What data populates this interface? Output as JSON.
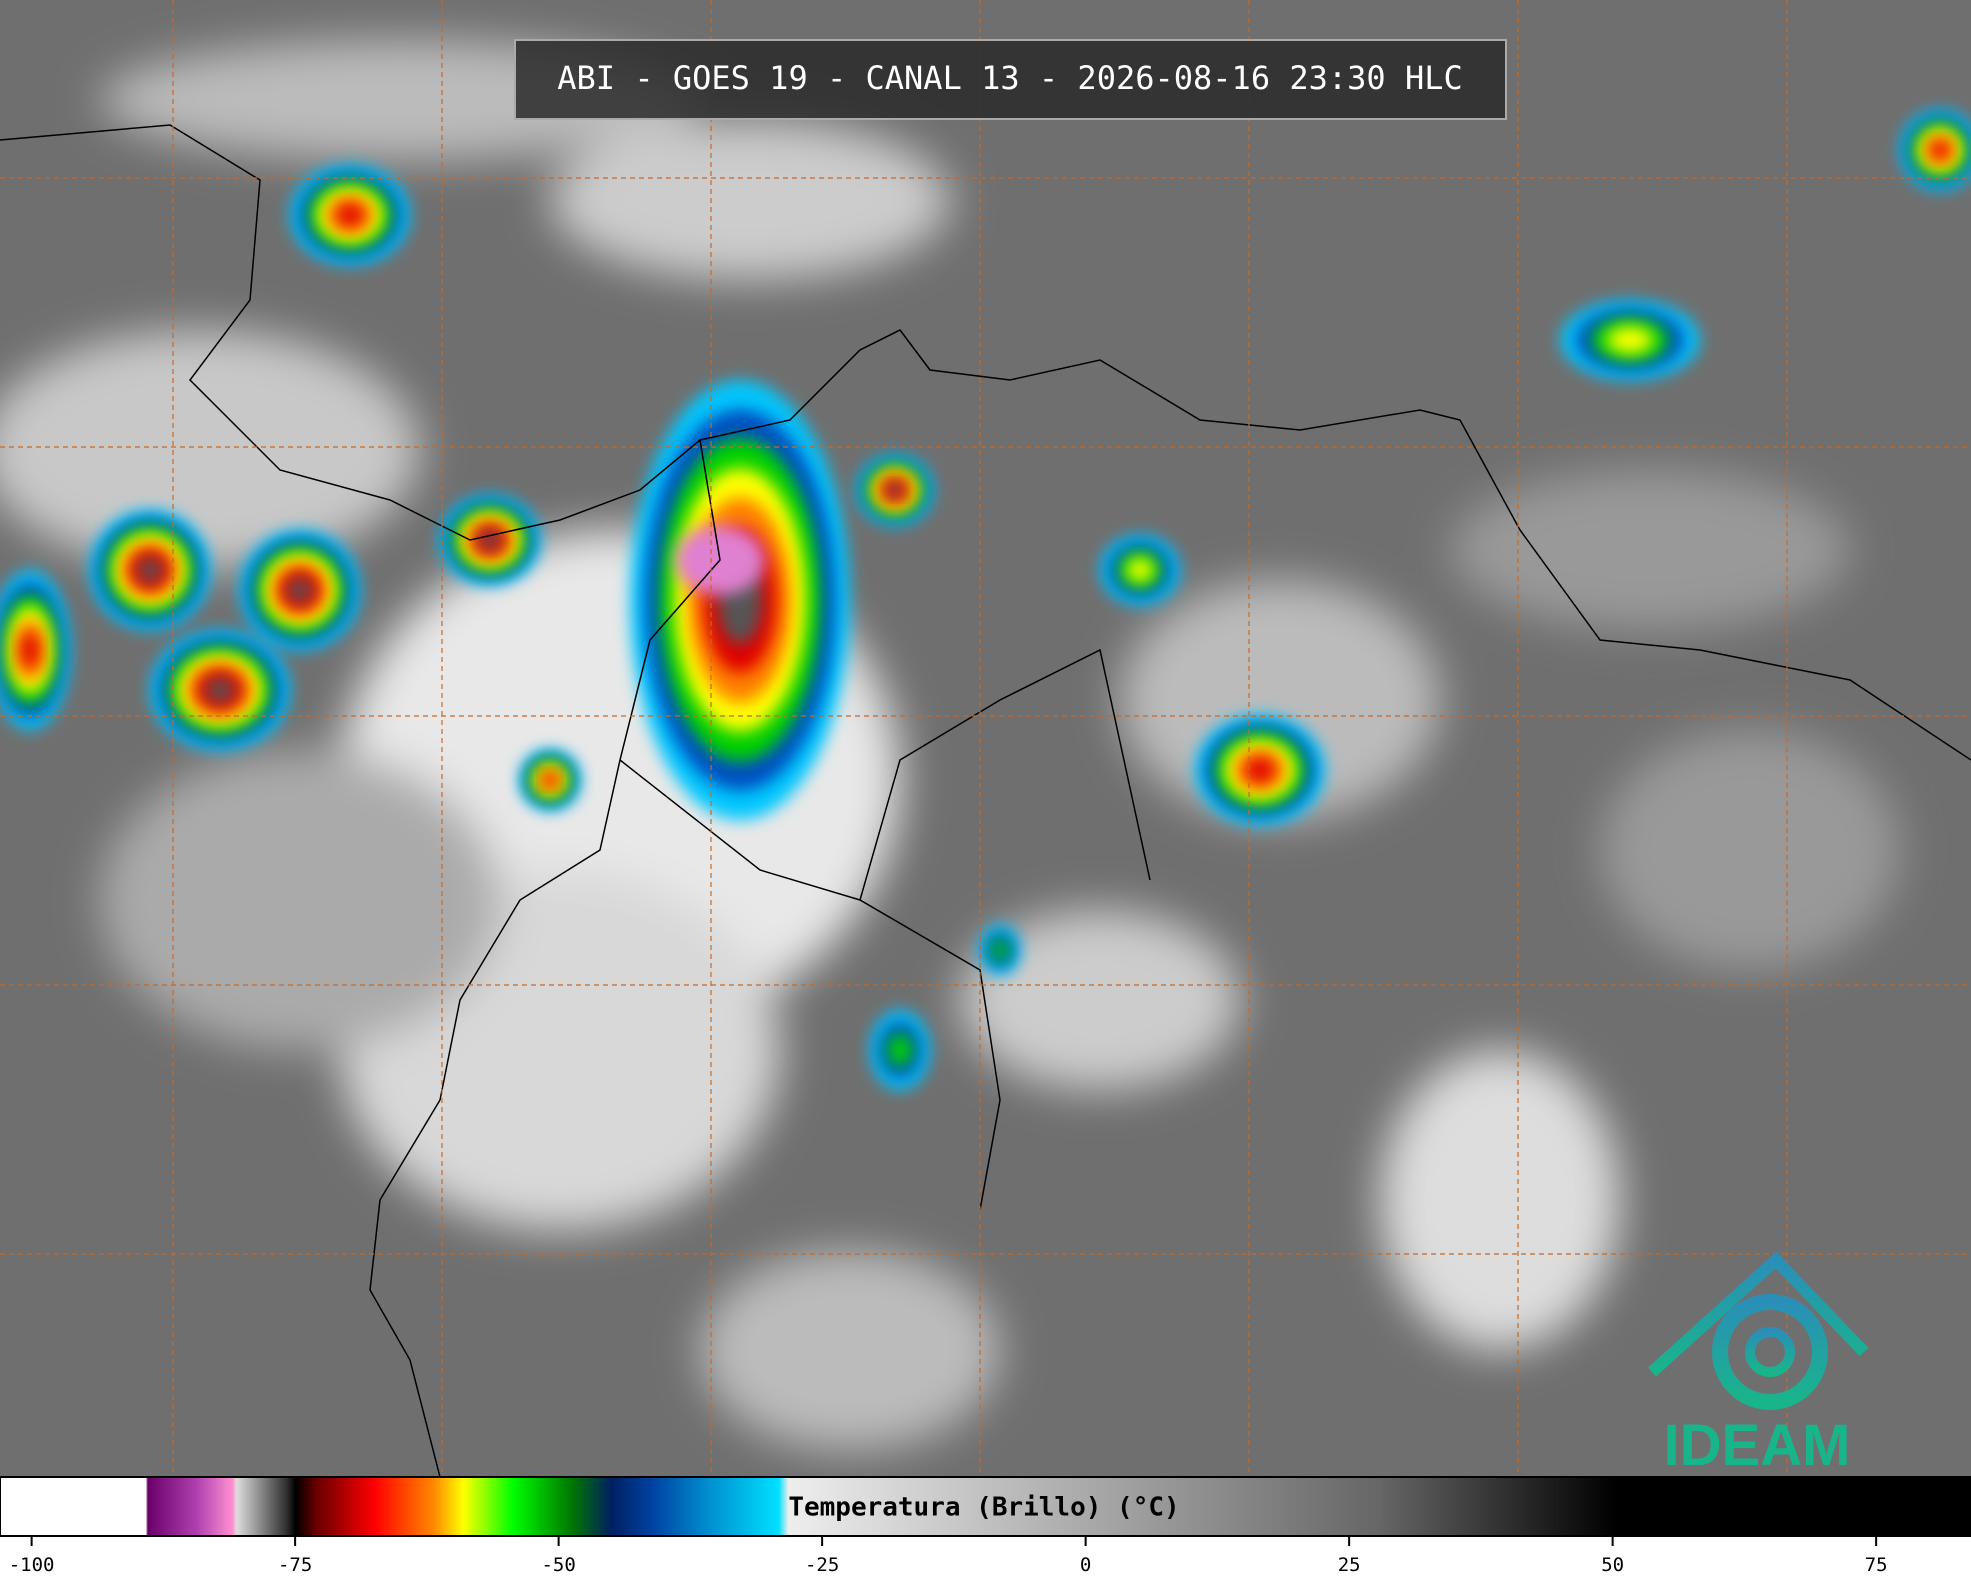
{
  "header": {
    "title": "ABI - GOES 19 - CANAL 13 - 2026-08-16 23:30 HLC"
  },
  "logo": {
    "text": "IDEAM"
  },
  "colorbar": {
    "label": "Temperatura (Brillo) (°C)",
    "range": [
      -103,
      84
    ],
    "ticks": [
      -100,
      -75,
      -50,
      -25,
      0,
      25,
      50,
      75
    ]
  }
}
